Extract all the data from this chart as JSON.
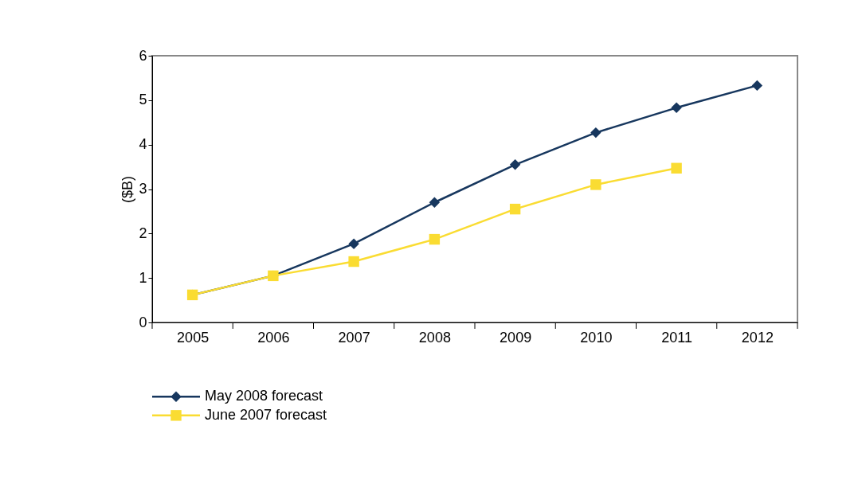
{
  "chart_data": {
    "type": "line",
    "ylabel": "($B)",
    "categories": [
      "2005",
      "2006",
      "2007",
      "2008",
      "2009",
      "2010",
      "2011",
      "2012"
    ],
    "ylim": [
      0,
      6
    ],
    "yticks": [
      0,
      1,
      2,
      3,
      4,
      5,
      6
    ],
    "grid": false,
    "legend": "bottom left",
    "line_style": "solid",
    "series": [
      {
        "name": "May 2008 forecast",
        "color": "#17375e",
        "marker": "diamond",
        "values": [
          0.62,
          1.05,
          1.77,
          2.7,
          3.55,
          4.27,
          4.83,
          5.33
        ]
      },
      {
        "name": "June 2007 forecast",
        "color": "#fadc32",
        "marker": "square",
        "values": [
          0.62,
          1.05,
          1.37,
          1.87,
          2.55,
          3.1,
          3.47,
          null
        ]
      }
    ]
  }
}
